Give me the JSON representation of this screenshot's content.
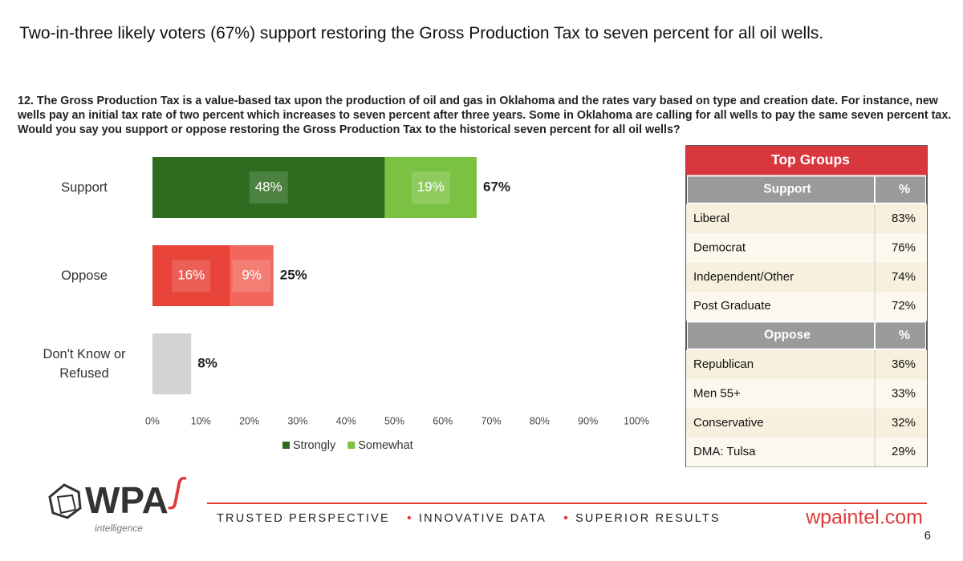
{
  "title": "Two-in-three likely voters (67%) support restoring the Gross Production Tax to seven percent for all oil wells.",
  "question": "12. The Gross Production Tax is a value-based tax upon the production of oil and gas in Oklahoma and the rates vary based on type and creation date. For instance, new wells pay an initial tax rate of two percent which increases to seven percent after three years. Some in Oklahoma are calling for all wells to pay the same seven percent tax. Would you say you support or oppose restoring the Gross Production Tax to the historical seven percent for all oil wells?",
  "chart_data": {
    "type": "stacked-bar-horizontal",
    "categories": [
      "Support",
      "Oppose",
      "Don't Know or Refused"
    ],
    "series": [
      {
        "name": "Strongly",
        "color": "#2e6b1f",
        "colors": [
          "#2e6b1f",
          "#e8443a",
          "#d3d3d3"
        ],
        "values": [
          48,
          16,
          8
        ],
        "value_labels": [
          "48%",
          "16%",
          null
        ]
      },
      {
        "name": "Somewhat",
        "color": "#7cc242",
        "colors": [
          "#7cc242",
          "#f2675c",
          null
        ],
        "values": [
          19,
          9,
          null
        ],
        "value_labels": [
          "19%",
          "9%",
          null
        ]
      }
    ],
    "totals": [
      67,
      25,
      8
    ],
    "total_labels": [
      "67%",
      "25%",
      "8%"
    ],
    "xlim": [
      0,
      100
    ],
    "xticks": [
      {
        "value": 0,
        "label": "0%"
      },
      {
        "value": 10,
        "label": "10%"
      },
      {
        "value": 20,
        "label": "20%"
      },
      {
        "value": 30,
        "label": "30%"
      },
      {
        "value": 40,
        "label": "40%"
      },
      {
        "value": 50,
        "label": "50%"
      },
      {
        "value": 60,
        "label": "60%"
      },
      {
        "value": 70,
        "label": "70%"
      },
      {
        "value": 80,
        "label": "80%"
      },
      {
        "value": 90,
        "label": "90%"
      },
      {
        "value": 100,
        "label": "100%"
      }
    ],
    "grid": false,
    "legend": "bottom"
  },
  "table": {
    "title": "Top Groups",
    "sections": [
      {
        "label": "Support",
        "pct_header": "%",
        "rows": [
          [
            "Liberal",
            "83%"
          ],
          [
            "Democrat",
            "76%"
          ],
          [
            "Independent/Other",
            "74%"
          ],
          [
            "Post Graduate",
            "72%"
          ]
        ]
      },
      {
        "label": "Oppose",
        "pct_header": "%",
        "rows": [
          [
            "Republican",
            "36%"
          ],
          [
            "Men 55+",
            "33%"
          ],
          [
            "Conservative",
            "32%"
          ],
          [
            "DMA: Tulsa",
            "29%"
          ]
        ]
      }
    ]
  },
  "footer": {
    "logo": "WPA",
    "logo_sub": "intelligence",
    "taglines": [
      "TRUSTED PERSPECTIVE",
      "INNOVATIVE DATA",
      "SUPERIOR RESULTS"
    ],
    "url": "wpaintel.com",
    "page": "6"
  }
}
